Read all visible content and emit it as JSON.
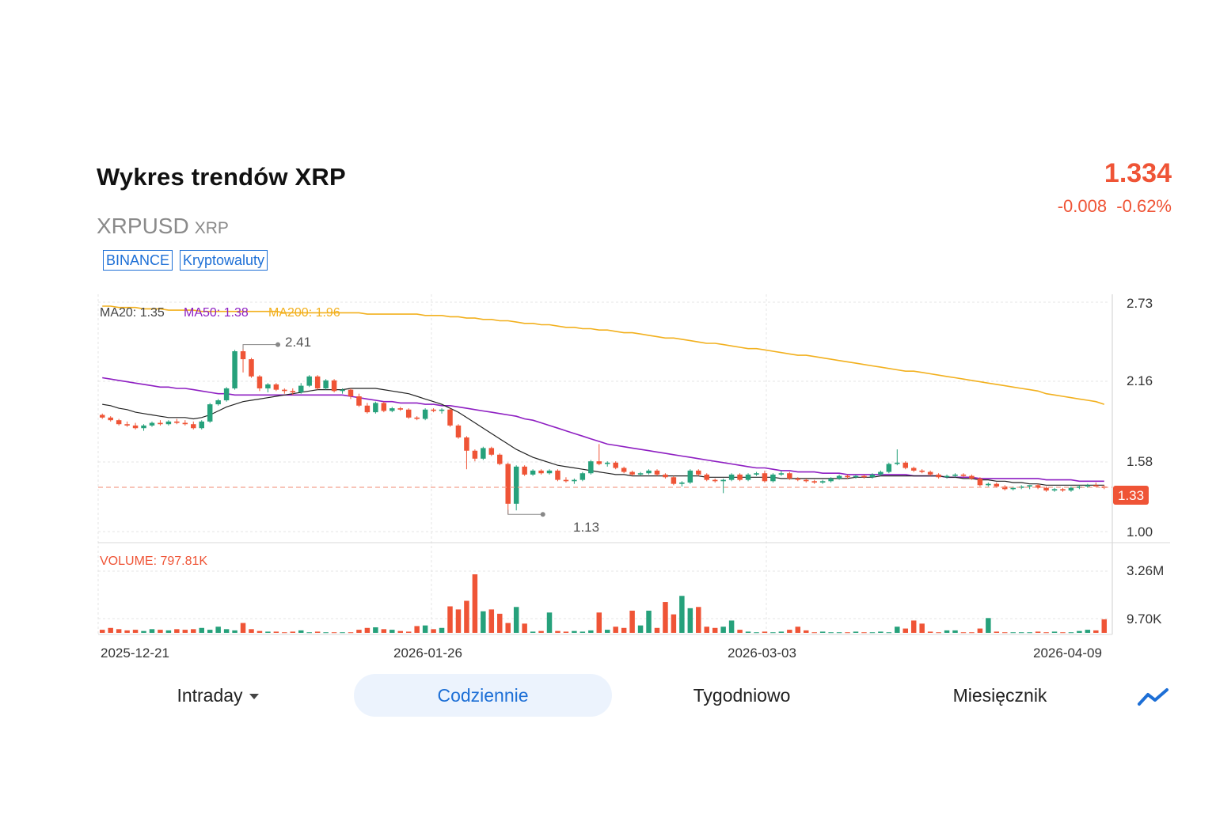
{
  "header": {
    "title": "Wykres trendów XRP",
    "symbol": "XRPUSD",
    "symbol_sub": "XRP",
    "price": "1.334",
    "change": "-0.008  -0.62%",
    "tags": [
      "BINANCE",
      "Kryptowaluty"
    ]
  },
  "colors": {
    "up": "#26a17b",
    "down": "#ef5436",
    "ma20": "#222222",
    "ma50": "#8e1fc2",
    "ma200": "#f2b01e",
    "accent": "#1d6fd6"
  },
  "legend": {
    "ma20": "MA20: 1.35",
    "ma50": "MA50: 1.38",
    "ma200": "MA200: 1.96",
    "volume": "VOLUME: 797.81K"
  },
  "tabs": {
    "intraday": "Intraday",
    "daily": "Codziennie",
    "weekly": "Tygodniowo",
    "monthly": "Miesięcznik",
    "active": "Codziennie",
    "chart_style_icon": "line-trend-icon"
  },
  "chart_data": {
    "type": "candlestick",
    "x_ticks": [
      "2025-12-21",
      "2026-01-26",
      "2026-03-03",
      "2026-04-09"
    ],
    "price_axis": {
      "ticks": [
        "2.73",
        "2.16",
        "1.58",
        "1.00"
      ],
      "ylim": [
        1.0,
        2.73
      ]
    },
    "volume_axis": {
      "ticks": [
        "3.26M",
        "9.70K"
      ]
    },
    "last_price_label": "1.33",
    "last_price": 1.334,
    "high_label": "2.41",
    "low_label": "1.13",
    "grid": true,
    "candles_ohlc": [
      [
        1.88,
        1.89,
        1.85,
        1.86
      ],
      [
        1.86,
        1.87,
        1.83,
        1.84
      ],
      [
        1.84,
        1.85,
        1.8,
        1.81
      ],
      [
        1.81,
        1.83,
        1.79,
        1.8
      ],
      [
        1.8,
        1.82,
        1.77,
        1.78
      ],
      [
        1.78,
        1.81,
        1.76,
        1.8
      ],
      [
        1.8,
        1.83,
        1.79,
        1.82
      ],
      [
        1.82,
        1.84,
        1.8,
        1.81
      ],
      [
        1.81,
        1.84,
        1.8,
        1.83
      ],
      [
        1.83,
        1.85,
        1.81,
        1.82
      ],
      [
        1.82,
        1.84,
        1.8,
        1.81
      ],
      [
        1.81,
        1.83,
        1.77,
        1.78
      ],
      [
        1.78,
        1.84,
        1.77,
        1.83
      ],
      [
        1.83,
        1.97,
        1.82,
        1.96
      ],
      [
        1.96,
        2.0,
        1.95,
        1.99
      ],
      [
        1.99,
        2.09,
        1.98,
        2.08
      ],
      [
        2.08,
        2.37,
        2.07,
        2.36
      ],
      [
        2.36,
        2.41,
        2.2,
        2.3
      ],
      [
        2.3,
        2.31,
        2.16,
        2.17
      ],
      [
        2.17,
        2.18,
        2.06,
        2.08
      ],
      [
        2.08,
        2.12,
        2.05,
        2.11
      ],
      [
        2.11,
        2.12,
        2.06,
        2.07
      ],
      [
        2.07,
        2.08,
        2.04,
        2.06
      ],
      [
        2.06,
        2.08,
        2.03,
        2.05
      ],
      [
        2.05,
        2.12,
        2.04,
        2.1
      ],
      [
        2.1,
        2.18,
        2.09,
        2.17
      ],
      [
        2.17,
        2.18,
        2.07,
        2.08
      ],
      [
        2.08,
        2.15,
        2.07,
        2.14
      ],
      [
        2.14,
        2.15,
        2.05,
        2.06
      ],
      [
        2.06,
        2.08,
        2.04,
        2.07
      ],
      [
        2.07,
        2.08,
        2.0,
        2.02
      ],
      [
        2.02,
        2.04,
        1.94,
        1.95
      ],
      [
        1.95,
        1.97,
        1.89,
        1.9
      ],
      [
        1.9,
        1.98,
        1.89,
        1.97
      ],
      [
        1.97,
        1.98,
        1.9,
        1.91
      ],
      [
        1.91,
        1.94,
        1.9,
        1.93
      ],
      [
        1.93,
        1.94,
        1.91,
        1.92
      ],
      [
        1.92,
        1.93,
        1.85,
        1.86
      ],
      [
        1.86,
        1.87,
        1.84,
        1.85
      ],
      [
        1.85,
        1.93,
        1.84,
        1.92
      ],
      [
        1.92,
        1.93,
        1.9,
        1.91
      ],
      [
        1.91,
        1.93,
        1.89,
        1.92
      ],
      [
        1.92,
        1.93,
        1.79,
        1.8
      ],
      [
        1.8,
        1.81,
        1.7,
        1.71
      ],
      [
        1.71,
        1.72,
        1.47,
        1.61
      ],
      [
        1.61,
        1.62,
        1.53,
        1.55
      ],
      [
        1.55,
        1.64,
        1.54,
        1.63
      ],
      [
        1.63,
        1.64,
        1.57,
        1.58
      ],
      [
        1.58,
        1.59,
        1.5,
        1.51
      ],
      [
        1.51,
        1.52,
        1.13,
        1.21
      ],
      [
        1.21,
        1.5,
        1.16,
        1.49
      ],
      [
        1.49,
        1.5,
        1.42,
        1.43
      ],
      [
        1.43,
        1.47,
        1.42,
        1.46
      ],
      [
        1.46,
        1.47,
        1.43,
        1.44
      ],
      [
        1.44,
        1.47,
        1.43,
        1.46
      ],
      [
        1.46,
        1.47,
        1.38,
        1.39
      ],
      [
        1.39,
        1.41,
        1.37,
        1.38
      ],
      [
        1.38,
        1.4,
        1.36,
        1.39
      ],
      [
        1.39,
        1.45,
        1.38,
        1.44
      ],
      [
        1.44,
        1.54,
        1.43,
        1.53
      ],
      [
        1.53,
        1.66,
        1.5,
        1.51
      ],
      [
        1.51,
        1.53,
        1.49,
        1.52
      ],
      [
        1.52,
        1.53,
        1.47,
        1.48
      ],
      [
        1.48,
        1.49,
        1.44,
        1.45
      ],
      [
        1.45,
        1.46,
        1.42,
        1.43
      ],
      [
        1.43,
        1.45,
        1.42,
        1.44
      ],
      [
        1.44,
        1.47,
        1.43,
        1.46
      ],
      [
        1.46,
        1.47,
        1.42,
        1.43
      ],
      [
        1.43,
        1.44,
        1.4,
        1.41
      ],
      [
        1.41,
        1.42,
        1.35,
        1.36
      ],
      [
        1.36,
        1.38,
        1.34,
        1.37
      ],
      [
        1.37,
        1.47,
        1.36,
        1.46
      ],
      [
        1.46,
        1.47,
        1.42,
        1.43
      ],
      [
        1.43,
        1.44,
        1.38,
        1.39
      ],
      [
        1.39,
        1.4,
        1.37,
        1.38
      ],
      [
        1.38,
        1.4,
        1.29,
        1.39
      ],
      [
        1.39,
        1.44,
        1.38,
        1.43
      ],
      [
        1.43,
        1.44,
        1.38,
        1.39
      ],
      [
        1.39,
        1.44,
        1.38,
        1.43
      ],
      [
        1.43,
        1.45,
        1.42,
        1.44
      ],
      [
        1.44,
        1.46,
        1.37,
        1.38
      ],
      [
        1.38,
        1.44,
        1.37,
        1.43
      ],
      [
        1.43,
        1.46,
        1.42,
        1.44
      ],
      [
        1.44,
        1.45,
        1.39,
        1.4
      ],
      [
        1.4,
        1.41,
        1.38,
        1.39
      ],
      [
        1.39,
        1.4,
        1.37,
        1.38
      ],
      [
        1.38,
        1.39,
        1.36,
        1.37
      ],
      [
        1.37,
        1.39,
        1.36,
        1.38
      ],
      [
        1.38,
        1.41,
        1.37,
        1.4
      ],
      [
        1.4,
        1.43,
        1.39,
        1.42
      ],
      [
        1.42,
        1.43,
        1.4,
        1.41
      ],
      [
        1.41,
        1.43,
        1.4,
        1.42
      ],
      [
        1.42,
        1.43,
        1.4,
        1.41
      ],
      [
        1.41,
        1.44,
        1.4,
        1.43
      ],
      [
        1.43,
        1.46,
        1.42,
        1.45
      ],
      [
        1.45,
        1.52,
        1.44,
        1.51
      ],
      [
        1.51,
        1.62,
        1.5,
        1.52
      ],
      [
        1.52,
        1.53,
        1.47,
        1.48
      ],
      [
        1.48,
        1.49,
        1.45,
        1.46
      ],
      [
        1.46,
        1.47,
        1.44,
        1.45
      ],
      [
        1.45,
        1.46,
        1.42,
        1.43
      ],
      [
        1.43,
        1.44,
        1.4,
        1.41
      ],
      [
        1.41,
        1.43,
        1.4,
        1.42
      ],
      [
        1.42,
        1.44,
        1.41,
        1.43
      ],
      [
        1.43,
        1.44,
        1.41,
        1.42
      ],
      [
        1.42,
        1.43,
        1.39,
        1.4
      ],
      [
        1.4,
        1.41,
        1.34,
        1.35
      ],
      [
        1.35,
        1.37,
        1.34,
        1.36
      ],
      [
        1.36,
        1.37,
        1.33,
        1.34
      ],
      [
        1.34,
        1.35,
        1.31,
        1.32
      ],
      [
        1.32,
        1.34,
        1.31,
        1.33
      ],
      [
        1.33,
        1.35,
        1.32,
        1.34
      ],
      [
        1.34,
        1.35,
        1.32,
        1.35
      ],
      [
        1.35,
        1.36,
        1.32,
        1.33
      ],
      [
        1.33,
        1.34,
        1.3,
        1.31
      ],
      [
        1.31,
        1.33,
        1.3,
        1.32
      ],
      [
        1.32,
        1.33,
        1.3,
        1.31
      ],
      [
        1.31,
        1.34,
        1.3,
        1.33
      ],
      [
        1.33,
        1.35,
        1.32,
        1.34
      ],
      [
        1.34,
        1.36,
        1.33,
        1.35
      ],
      [
        1.35,
        1.37,
        1.34,
        1.34
      ],
      [
        1.34,
        1.35,
        1.32,
        1.33
      ]
    ],
    "volumes": [
      0.05,
      0.08,
      0.06,
      0.04,
      0.05,
      0.03,
      0.06,
      0.05,
      0.04,
      0.06,
      0.05,
      0.06,
      0.08,
      0.05,
      0.1,
      0.06,
      0.04,
      0.16,
      0.06,
      0.03,
      0.02,
      0.02,
      0.01,
      0.02,
      0.04,
      0.01,
      0.02,
      0.01,
      0.01,
      0.01,
      0.01,
      0.05,
      0.08,
      0.09,
      0.06,
      0.05,
      0.03,
      0.02,
      0.11,
      0.12,
      0.06,
      0.08,
      0.43,
      0.38,
      0.52,
      0.95,
      0.35,
      0.38,
      0.31,
      0.16,
      0.42,
      0.15,
      0.02,
      0.03,
      0.33,
      0.03,
      0.02,
      0.03,
      0.02,
      0.04,
      0.33,
      0.05,
      0.1,
      0.08,
      0.36,
      0.12,
      0.36,
      0.08,
      0.5,
      0.3,
      0.6,
      0.4,
      0.42,
      0.1,
      0.08,
      0.1,
      0.2,
      0.05,
      0.02,
      0.01,
      0.02,
      0.01,
      0.02,
      0.05,
      0.1,
      0.04,
      0.01,
      0.02,
      0.01,
      0.01,
      0.01,
      0.02,
      0.01,
      0.01,
      0.02,
      0.01,
      0.1,
      0.07,
      0.2,
      0.15,
      0.02,
      0.01,
      0.04,
      0.04,
      0.01,
      0.01,
      0.07,
      0.24,
      0.02,
      0.01,
      0.01,
      0.01,
      0.01,
      0.02,
      0.01,
      0.02,
      0.01,
      0.01,
      0.03,
      0.05,
      0.04,
      0.22
    ],
    "ma20": [
      1.96,
      1.95,
      1.93,
      1.92,
      1.9,
      1.89,
      1.88,
      1.87,
      1.86,
      1.86,
      1.86,
      1.85,
      1.86,
      1.88,
      1.91,
      1.94,
      1.96,
      1.98,
      1.99,
      2.0,
      2.01,
      2.02,
      2.03,
      2.04,
      2.05,
      2.06,
      2.07,
      2.07,
      2.07,
      2.07,
      2.08,
      2.08,
      2.08,
      2.08,
      2.07,
      2.06,
      2.05,
      2.04,
      2.02,
      2.0,
      1.98,
      1.96,
      1.93,
      1.9,
      1.86,
      1.82,
      1.78,
      1.74,
      1.7,
      1.66,
      1.62,
      1.59,
      1.56,
      1.54,
      1.52,
      1.5,
      1.49,
      1.48,
      1.47,
      1.46,
      1.45,
      1.44,
      1.43,
      1.43,
      1.42,
      1.42,
      1.42,
      1.42,
      1.42,
      1.42,
      1.42,
      1.42,
      1.42,
      1.41,
      1.41,
      1.41,
      1.41,
      1.41,
      1.41,
      1.41,
      1.41,
      1.41,
      1.4,
      1.4,
      1.4,
      1.4,
      1.4,
      1.4,
      1.4,
      1.4,
      1.4,
      1.41,
      1.41,
      1.41,
      1.42,
      1.42,
      1.42,
      1.42,
      1.42,
      1.42,
      1.42,
      1.42,
      1.41,
      1.41,
      1.4,
      1.4,
      1.39,
      1.39,
      1.38,
      1.38,
      1.37,
      1.37,
      1.36,
      1.36,
      1.35,
      1.35,
      1.35,
      1.35,
      1.35,
      1.35,
      1.35,
      1.35
    ],
    "ma50": [
      2.16,
      2.15,
      2.14,
      2.13,
      2.12,
      2.11,
      2.1,
      2.09,
      2.09,
      2.08,
      2.08,
      2.07,
      2.06,
      2.05,
      2.04,
      2.04,
      2.03,
      2.03,
      2.03,
      2.03,
      2.03,
      2.03,
      2.03,
      2.03,
      2.03,
      2.03,
      2.03,
      2.03,
      2.03,
      2.03,
      2.02,
      2.01,
      2.0,
      1.99,
      1.98,
      1.98,
      1.97,
      1.97,
      1.97,
      1.96,
      1.96,
      1.95,
      1.95,
      1.94,
      1.93,
      1.92,
      1.91,
      1.9,
      1.89,
      1.88,
      1.87,
      1.85,
      1.84,
      1.82,
      1.8,
      1.78,
      1.76,
      1.74,
      1.72,
      1.7,
      1.68,
      1.66,
      1.65,
      1.64,
      1.63,
      1.62,
      1.61,
      1.6,
      1.59,
      1.58,
      1.57,
      1.56,
      1.55,
      1.54,
      1.53,
      1.52,
      1.51,
      1.5,
      1.49,
      1.48,
      1.48,
      1.47,
      1.46,
      1.46,
      1.45,
      1.45,
      1.45,
      1.44,
      1.44,
      1.44,
      1.43,
      1.43,
      1.43,
      1.43,
      1.43,
      1.43,
      1.43,
      1.43,
      1.42,
      1.42,
      1.42,
      1.42,
      1.41,
      1.41,
      1.41,
      1.41,
      1.4,
      1.4,
      1.4,
      1.4,
      1.4,
      1.4,
      1.4,
      1.4,
      1.39,
      1.39,
      1.39,
      1.39,
      1.38,
      1.38,
      1.38,
      1.38
    ],
    "ma200": [
      2.7,
      2.7,
      2.69,
      2.69,
      2.69,
      2.68,
      2.68,
      2.68,
      2.67,
      2.67,
      2.67,
      2.67,
      2.66,
      2.66,
      2.66,
      2.66,
      2.66,
      2.66,
      2.66,
      2.66,
      2.66,
      2.66,
      2.65,
      2.65,
      2.65,
      2.65,
      2.65,
      2.65,
      2.65,
      2.65,
      2.65,
      2.65,
      2.64,
      2.64,
      2.64,
      2.64,
      2.64,
      2.64,
      2.64,
      2.63,
      2.63,
      2.63,
      2.62,
      2.62,
      2.61,
      2.61,
      2.6,
      2.6,
      2.59,
      2.59,
      2.58,
      2.57,
      2.57,
      2.56,
      2.56,
      2.55,
      2.54,
      2.54,
      2.53,
      2.53,
      2.52,
      2.52,
      2.51,
      2.5,
      2.5,
      2.49,
      2.48,
      2.47,
      2.46,
      2.46,
      2.45,
      2.44,
      2.43,
      2.42,
      2.42,
      2.41,
      2.4,
      2.39,
      2.38,
      2.38,
      2.37,
      2.36,
      2.35,
      2.34,
      2.33,
      2.33,
      2.32,
      2.31,
      2.3,
      2.29,
      2.28,
      2.27,
      2.26,
      2.25,
      2.24,
      2.23,
      2.22,
      2.21,
      2.21,
      2.2,
      2.19,
      2.18,
      2.17,
      2.16,
      2.15,
      2.14,
      2.13,
      2.12,
      2.11,
      2.1,
      2.09,
      2.08,
      2.07,
      2.06,
      2.04,
      2.03,
      2.02,
      2.01,
      2.0,
      1.99,
      1.98,
      1.96
    ]
  }
}
